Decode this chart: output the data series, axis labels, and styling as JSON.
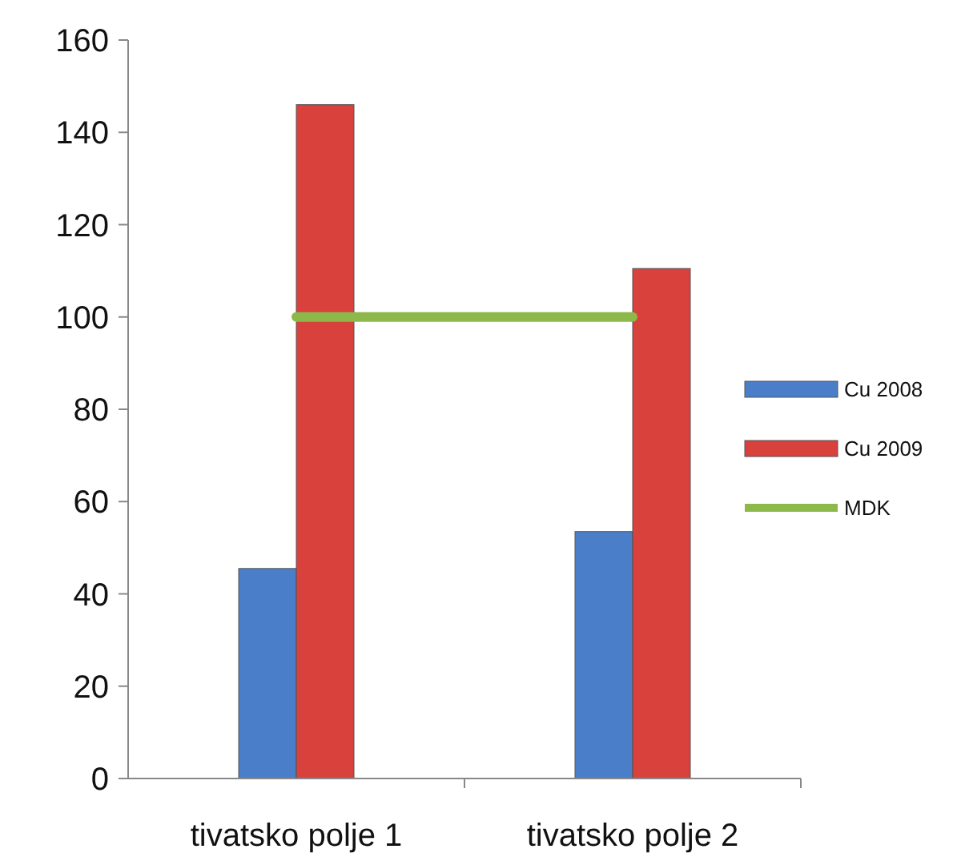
{
  "chart_data": {
    "type": "bar",
    "categories": [
      "tivatsko polje 1",
      "tivatsko polje 2"
    ],
    "series": [
      {
        "name": "Cu 2008",
        "color": "#4a7ec8",
        "values": [
          45.5,
          53.5
        ]
      },
      {
        "name": "Cu 2009",
        "color": "#d9413c",
        "values": [
          146,
          110.5
        ]
      }
    ],
    "ref_lines": [
      {
        "axis": "y",
        "value": 100,
        "label": "MDK",
        "color": "#8db94a"
      }
    ],
    "ylim": [
      0,
      160
    ],
    "yticks": [
      0,
      20,
      40,
      60,
      80,
      100,
      120,
      140,
      160
    ],
    "grid": false,
    "legend": "right"
  }
}
